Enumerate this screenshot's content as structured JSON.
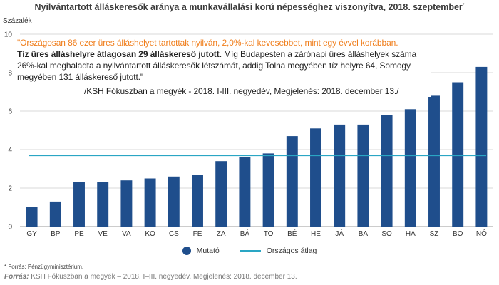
{
  "title": "Nyilvántartott álláskeresők aránya a munkavállalási korú népességhez viszonyítva, 2018. szeptember",
  "title_mark": "*",
  "quote": {
    "line1": "\"Országosan 86 ezer üres álláshelyet tartottak nyilván, 2,0%-kal kevesebbet,  mint egy évvel korábban.",
    "bold": "Tíz üres álláshelyre átlagosan 29 álláskereső jutott.",
    "rest": " Míg Budapesten a zárónapi üres álláshelyek száma 26%-kal meghaladta a nyilvántartott  álláskeresők  létszámát, addig  Tolna megyében tíz helyre 64, Somogy megyében 131 álláskereső jutott.\"",
    "source": "/KSH Fókuszban a megyék - 2018. I-III. negyedév, Megjelenés: 2018. december 13./"
  },
  "footnote": "* Forrás: Pénzügyminisztérium.",
  "source": {
    "label": "Forrás:",
    "text": " KSH Fókuszban a megyék – 2018. I–III. negyedév, Megjelenés: 2018. december 13."
  },
  "colors": {
    "bar": "#1f4e8c",
    "average_line": "#2aa6c4",
    "quote_highlight": "#f07d1a",
    "gridline": "#d9d9d9"
  },
  "chart_data": {
    "type": "bar",
    "title": "Nyilvántartott álláskeresők aránya a munkavállalási korú népességhez viszonyítva, 2018. szeptember",
    "ylabel": "Százalék",
    "xlabel": "",
    "ylim": [
      0,
      10
    ],
    "yticks": [
      0,
      2,
      4,
      6,
      8,
      10
    ],
    "grid": true,
    "legend_position": "bottom",
    "categories": [
      "GY",
      "BP",
      "PE",
      "VE",
      "VA",
      "KO",
      "CS",
      "FE",
      "ZA",
      "BÁ",
      "TO",
      "BÉ",
      "HE",
      "JÁ",
      "BA",
      "SO",
      "HA",
      "SZ",
      "BO",
      "NÓ"
    ],
    "series": [
      {
        "name": "Mutató",
        "values": [
          1.0,
          1.3,
          2.3,
          2.3,
          2.4,
          2.5,
          2.6,
          2.7,
          3.4,
          3.6,
          3.8,
          4.7,
          5.1,
          5.3,
          5.3,
          5.8,
          6.1,
          6.8,
          7.5,
          8.3
        ]
      }
    ],
    "reference_line": {
      "name": "Országos átlag",
      "value": 3.7
    }
  }
}
